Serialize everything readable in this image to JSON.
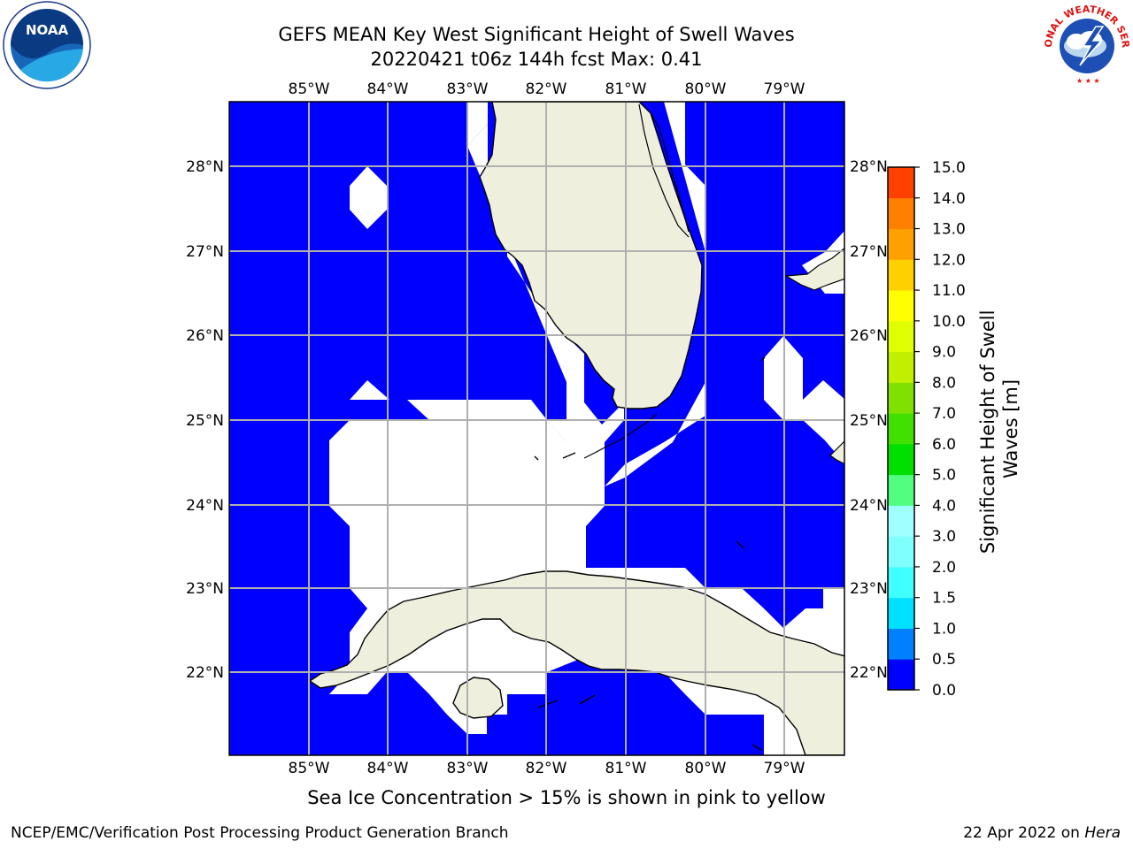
{
  "header": {
    "title_line1": "GEFS MEAN Key West Significant Height of Swell Waves",
    "title_line2": "20220421 t06z 144h fcst   Max: 0.41"
  },
  "logos": {
    "noaa_text": "NOAA",
    "nws_text": "NATIONAL WEATHER SERVICE"
  },
  "map": {
    "lon_labels": [
      "85°W",
      "84°W",
      "83°W",
      "82°W",
      "81°W",
      "80°W",
      "79°W"
    ],
    "lat_labels": [
      "28°N",
      "27°N",
      "26°N",
      "25°N",
      "24°N",
      "23°N",
      "22°N"
    ],
    "colors": {
      "ocean": "#0000ff",
      "land": "#efefde",
      "grid": "#b0b0b0",
      "nodata": "#ffffff"
    }
  },
  "colorbar": {
    "label": "Significant Height of Swell Waves [m]",
    "ticks": [
      "0.0",
      "0.5",
      "1.0",
      "1.5",
      "2.0",
      "3.0",
      "4.0",
      "5.0",
      "6.0",
      "7.0",
      "8.0",
      "9.0",
      "10.0",
      "11.0",
      "12.0",
      "13.0",
      "14.0",
      "15.0"
    ],
    "colors": [
      "#0000ff",
      "#0080ff",
      "#00e0ff",
      "#40ffff",
      "#80ffff",
      "#a0ffff",
      "#50ff80",
      "#00e000",
      "#40e000",
      "#80e000",
      "#c0f000",
      "#e0ff00",
      "#ffff00",
      "#ffd000",
      "#ffa000",
      "#ff8000",
      "#ff4000",
      "#ff0000"
    ]
  },
  "note": "Sea Ice Concentration > 15% is shown in pink to yellow",
  "footer": {
    "left": "NCEP/EMC/Verification Post Processing Product Generation Branch",
    "right_date": "22 Apr 2022 on ",
    "right_host": "Hera"
  }
}
